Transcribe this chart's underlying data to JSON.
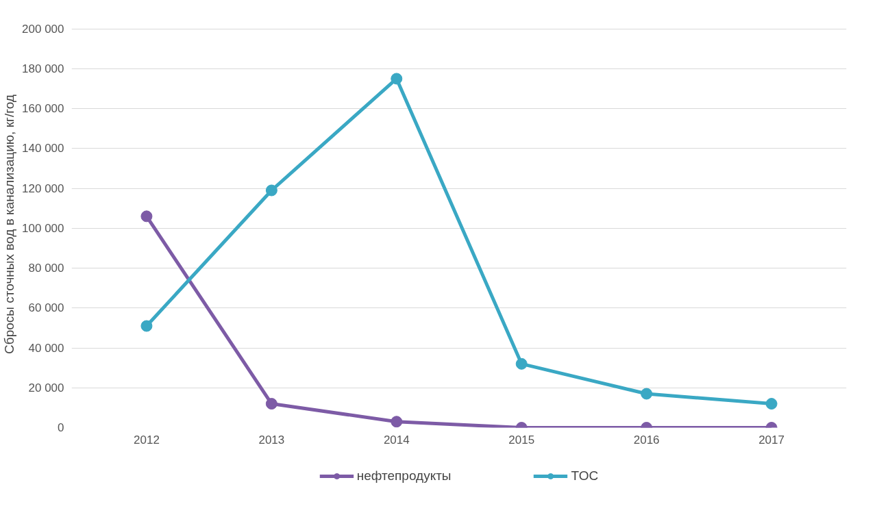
{
  "chart_data": {
    "type": "line",
    "ylabel": "Сбросы сточных вод в канализацию, кг/год",
    "categories": [
      "2012",
      "2013",
      "2014",
      "2015",
      "2016",
      "2017"
    ],
    "series": [
      {
        "name": "нефтепродукты",
        "color": "#7d5ba6",
        "values": [
          106000,
          12000,
          3000,
          0,
          0,
          0
        ]
      },
      {
        "name": "TOC",
        "color": "#3aa8c4",
        "values": [
          51000,
          119000,
          175000,
          32000,
          17000,
          12000
        ]
      }
    ],
    "ylim": [
      0,
      200000
    ],
    "yticks": [
      {
        "value": 0,
        "label": "0"
      },
      {
        "value": 20000,
        "label": "20 000"
      },
      {
        "value": 40000,
        "label": "40 000"
      },
      {
        "value": 60000,
        "label": "60 000"
      },
      {
        "value": 80000,
        "label": "80 000"
      },
      {
        "value": 100000,
        "label": "100 000"
      },
      {
        "value": 120000,
        "label": "120 000"
      },
      {
        "value": 140000,
        "label": "140 000"
      },
      {
        "value": 160000,
        "label": "160 000"
      },
      {
        "value": 180000,
        "label": "180 000"
      },
      {
        "value": 200000,
        "label": "200 000"
      }
    ],
    "grid": "y",
    "legend": "bottom",
    "marker": "circle",
    "line_style": "solid"
  }
}
